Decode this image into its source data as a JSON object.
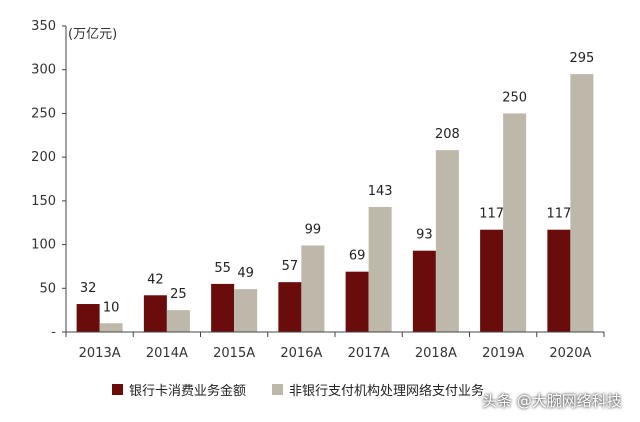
{
  "chart_data": {
    "type": "bar",
    "unit_label": "(万亿元)",
    "categories": [
      "2013A",
      "2014A",
      "2015A",
      "2016A",
      "2017A",
      "2018A",
      "2019A",
      "2020A"
    ],
    "series": [
      {
        "name": "银行卡消费业务金额",
        "values": [
          32,
          42,
          55,
          57,
          69,
          93,
          117,
          117
        ],
        "color": "#6b0c0c"
      },
      {
        "name": "非银行支付机构处理网络支付业务",
        "values": [
          10,
          25,
          49,
          99,
          143,
          208,
          250,
          295
        ],
        "color": "#bdb8aa"
      }
    ],
    "ylim": [
      0,
      350
    ],
    "yticks": [
      "-",
      "50",
      "100",
      "150",
      "200",
      "250",
      "300",
      "350"
    ],
    "legend_position": "bottom",
    "grid": false
  },
  "watermark": "头条 @大腕网络科技"
}
